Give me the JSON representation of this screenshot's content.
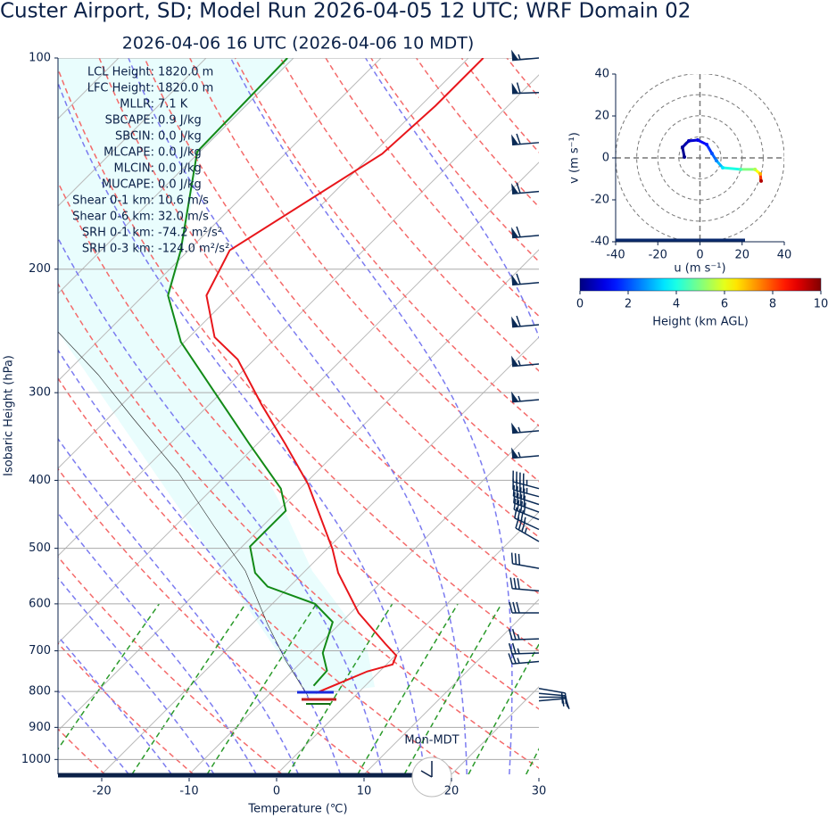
{
  "chart_data": [
    {
      "type": "skewt",
      "title": "Custer Airport, SD; Model Run 2026-04-05 12 UTC; WRF Domain 02",
      "subtitle": "2026-04-06 16 UTC  (2026-04-06 10 MDT)",
      "xlabel": "Temperature (℃)",
      "ylabel": "Isobaric Height (hPa)",
      "xlim": [
        -25,
        30
      ],
      "xticks": [
        -20,
        -10,
        0,
        10,
        20,
        30
      ],
      "ylim": [
        100,
        1050
      ],
      "yticks": [
        100,
        200,
        300,
        400,
        500,
        600,
        700,
        800,
        900,
        1000
      ],
      "log_scale": true,
      "grid": true,
      "profiles": [
        {
          "color": "#e8161b",
          "x": [
            -4.8,
            -1.4,
            0.7,
            0.1,
            -2.5,
            -9.1,
            -16.0,
            -19.4,
            -29.6,
            -36.8,
            -44.0,
            -51.9,
            -57.1,
            -62.8,
            -65.3,
            -58.9,
            -58.3,
            -58.3
          ],
          "y": [
            804,
            749,
            732,
            711,
            684,
            618,
            542,
            501,
            405,
            355,
            312,
            269,
            250,
            218,
            188,
            137,
            117,
            100
          ]
        },
        {
          "color": "#138a17",
          "x": [
            -5.9,
            -6.1,
            -8.6,
            -11.0,
            -15.1,
            -22.5,
            -25.5,
            -29.1,
            -29.1,
            -32.2,
            -40.9,
            -51.1,
            -60.4,
            -67.2,
            -70.9,
            -80.3,
            -80.7
          ],
          "y": [
            785,
            747,
            705,
            637,
            600,
            567,
            542,
            497,
            442,
            411,
            355,
            298,
            254,
            218,
            188,
            136,
            100
          ]
        }
      ],
      "barbs": {
        "color": "#0a2a55",
        "pressure": [
          100,
          112,
          132,
          155,
          179,
          209,
          240,
          273,
          307,
          340,
          369,
          411,
          422,
          433,
          444,
          455,
          470,
          489,
          534,
          575,
          618,
          673,
          705,
          725,
          792,
          805,
          815,
          825
        ],
        "direction": [
          265,
          268,
          265,
          265,
          265,
          265,
          265,
          265,
          265,
          265,
          265,
          285,
          285,
          288,
          290,
          292,
          295,
          300,
          280,
          275,
          270,
          268,
          268,
          265,
          100,
          95,
          90,
          85
        ],
        "speed": [
          55,
          60,
          60,
          60,
          60,
          60,
          60,
          55,
          55,
          55,
          55,
          45,
          45,
          40,
          40,
          40,
          35,
          35,
          30,
          30,
          30,
          25,
          25,
          25,
          20,
          20,
          15,
          15
        ]
      },
      "indices": [
        {
          "label": "LCL Height:",
          "value": "1820.0 m"
        },
        {
          "label": "LFC Height:",
          "value": "1820.0 m"
        },
        {
          "label": "MLLR:",
          "value": "7.1 K"
        },
        {
          "label": "SBCAPE:",
          "value": "0.9 J/kg"
        },
        {
          "label": "SBCIN:",
          "value": "0.0 J/kg"
        },
        {
          "label": "MLCAPE:",
          "value": "0.0 J/kg"
        },
        {
          "label": "MLCIN:",
          "value": "0.0 J/kg"
        },
        {
          "label": "MUCAPE:",
          "value": "0.0 J/kg"
        },
        {
          "label": "Shear 0-1 km:",
          "value": "10.6 m/s"
        },
        {
          "label": "Shear 0-6 km:",
          "value": "32.0 m/s"
        },
        {
          "label": "SRH 0-1 km:",
          "value": "-74.2 m²/s²"
        },
        {
          "label": "SRH 0-3 km:",
          "value": "-124.0 m²/s²"
        }
      ],
      "clock_label": "Mon-MDT"
    },
    {
      "type": "hodograph",
      "xlabel": "u (m s⁻¹)",
      "ylabel": "v (m s⁻¹)",
      "xlim": [
        -40,
        40
      ],
      "xticks": [
        -40,
        -20,
        0,
        20,
        40
      ],
      "ylim": [
        -40,
        40
      ],
      "yticks": [
        -40,
        -20,
        0,
        20,
        40
      ],
      "rings": [
        10,
        20,
        30,
        40
      ],
      "x": [
        -7.4,
        -8.3,
        -5.3,
        -1.1,
        3.2,
        5.7,
        7.8,
        10.8,
        19.3,
        26.1,
        28.6,
        29.0
      ],
      "y": [
        0.4,
        5.1,
        8.1,
        8.5,
        6.4,
        2.1,
        -1.3,
        -4.7,
        -5.5,
        -5.5,
        -7.6,
        -11.0
      ],
      "heights": [
        0.1,
        0.3,
        0.6,
        1.0,
        1.5,
        2.0,
        2.5,
        3.5,
        4.5,
        5.5,
        7.0,
        9.5
      ],
      "colorbar": {
        "label": "Height (km AGL)",
        "lim": [
          0,
          10
        ],
        "ticks": [
          0,
          2,
          4,
          6,
          8,
          10
        ]
      }
    }
  ]
}
